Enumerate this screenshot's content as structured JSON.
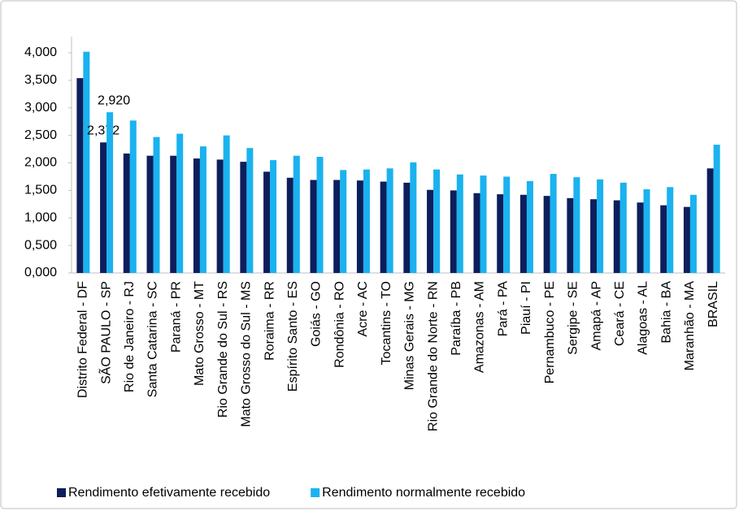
{
  "chart_data": {
    "type": "bar",
    "categories": [
      "Distrito Federal - DF",
      "SÃO PAULO - SP",
      "Rio de Janeiro - RJ",
      "Santa Catarina - SC",
      "Paraná - PR",
      "Mato Grosso - MT",
      "Rio Grande do Sul - RS",
      "Mato Grosso do Sul - MS",
      "Roraima - RR",
      "Espírito Santo - ES",
      "Goiás - GO",
      "Rondônia - RO",
      "Acre - AC",
      "Tocantins - TO",
      "Minas Gerais - MG",
      "Rio Grande do Norte - RN",
      "Paraíba - PB",
      "Amazonas - AM",
      "Pará - PA",
      "Piauí - PI",
      "Pernambuco - PE",
      "Sergipe - SE",
      "Amapá - AP",
      "Ceará - CE",
      "Alagoas - AL",
      "Bahia - BA",
      "Maranhão - MA",
      "BRASIL"
    ],
    "series": [
      {
        "name": "Rendimento efetivamente recebido",
        "color": "#0d1e5c",
        "values": [
          3540,
          2372,
          2170,
          2130,
          2130,
          2080,
          2060,
          2020,
          1840,
          1730,
          1690,
          1690,
          1680,
          1660,
          1640,
          1510,
          1500,
          1450,
          1430,
          1420,
          1400,
          1360,
          1340,
          1320,
          1280,
          1230,
          1200,
          1900
        ],
        "value_labels": [
          null,
          "2,372",
          null,
          null,
          null,
          null,
          null,
          null,
          null,
          null,
          null,
          null,
          null,
          null,
          null,
          null,
          null,
          null,
          null,
          null,
          null,
          null,
          null,
          null,
          null,
          null,
          null,
          null
        ]
      },
      {
        "name": "Rendimento normalmente recebido",
        "color": "#1ab2ef",
        "values": [
          4020,
          2920,
          2770,
          2470,
          2530,
          2300,
          2500,
          2270,
          2050,
          2130,
          2110,
          1870,
          1880,
          1900,
          2010,
          1880,
          1790,
          1770,
          1750,
          1670,
          1800,
          1740,
          1700,
          1640,
          1520,
          1560,
          1420,
          2330
        ],
        "value_labels": [
          null,
          "2,920",
          null,
          null,
          null,
          null,
          null,
          null,
          null,
          null,
          null,
          null,
          null,
          null,
          null,
          null,
          null,
          null,
          null,
          null,
          null,
          null,
          null,
          null,
          null,
          null,
          null,
          null
        ]
      }
    ],
    "ylim": [
      0,
      4000
    ],
    "yticks": [
      {
        "value": 0,
        "label": "0,000"
      },
      {
        "value": 500,
        "label": "0,500"
      },
      {
        "value": 1000,
        "label": "1,000"
      },
      {
        "value": 1500,
        "label": "1,500"
      },
      {
        "value": 2000,
        "label": "2,000"
      },
      {
        "value": 2500,
        "label": "2,500"
      },
      {
        "value": 3000,
        "label": "3,000"
      },
      {
        "value": 3500,
        "label": "3,500"
      },
      {
        "value": 4000,
        "label": "4,000"
      }
    ],
    "grid": false
  }
}
